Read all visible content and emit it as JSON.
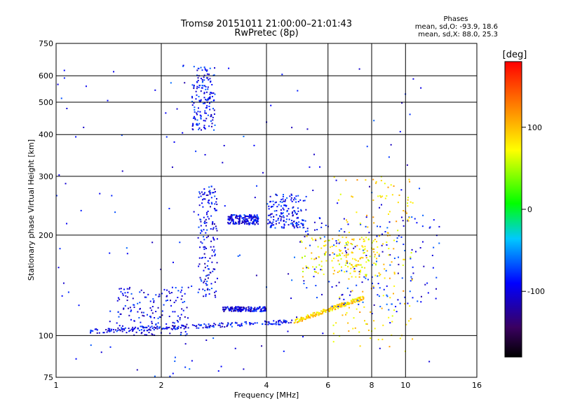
{
  "chart_data": {
    "type": "scatter",
    "title": "Tromsø 20151011 21:00:00–21:01:43",
    "subtitle": "RwPretec (8p)",
    "xlabel": "Frequency [MHz]",
    "ylabel": "Stationary phase Virtual Height [km]",
    "x_scale": "log",
    "y_scale": "log",
    "xlim": [
      1,
      16
    ],
    "ylim": [
      75,
      750
    ],
    "x_ticks": [
      1,
      2,
      4,
      6,
      8,
      10,
      16
    ],
    "x_tick_labels": [
      "1",
      "2",
      "4",
      "6",
      "8",
      "10",
      "16"
    ],
    "y_ticks": [
      75,
      100,
      200,
      300,
      400,
      500,
      600,
      750
    ],
    "y_tick_labels": [
      "75",
      "100",
      "200",
      "300",
      "400",
      "500",
      "600",
      "750"
    ],
    "grid": true,
    "legend": {
      "title": "Phases",
      "line1": "mean, sd,O: -93.9, 18.6",
      "line2": "mean, sd,X:  88.0, 25.3"
    },
    "colorbar": {
      "label": "[deg]",
      "range": [
        -180,
        180
      ],
      "ticks": [
        100,
        0,
        -100
      ],
      "tick_labels": [
        "100",
        "0",
        "-100"
      ]
    },
    "traces": [
      {
        "kind": "line",
        "x0": 1.25,
        "x1": 4.8,
        "y0": 103,
        "y1": 110,
        "phase": -95
      },
      {
        "kind": "cloud",
        "xmin": 1.5,
        "xmax": 2.4,
        "ymin": 100,
        "ymax": 140,
        "phase": -95
      },
      {
        "kind": "cloud",
        "xmin": 2.55,
        "xmax": 2.9,
        "ymin": 130,
        "ymax": 280,
        "phase": -95
      },
      {
        "kind": "cloud",
        "xmin": 2.45,
        "xmax": 2.85,
        "ymin": 410,
        "ymax": 640,
        "phase": -90
      },
      {
        "kind": "line",
        "x0": 4.8,
        "x1": 7.6,
        "y0": 110,
        "y1": 130,
        "phase": 90
      },
      {
        "kind": "cloud",
        "xmin": 5.0,
        "xmax": 12.5,
        "ymin": 120,
        "ymax": 230,
        "phase": -90
      },
      {
        "kind": "cloud",
        "xmin": 5.0,
        "xmax": 8.5,
        "ymin": 150,
        "ymax": 200,
        "phase": 80
      },
      {
        "kind": "cloud",
        "xmin": 4.0,
        "xmax": 5.2,
        "ymin": 210,
        "ymax": 265,
        "phase": -90
      },
      {
        "kind": "cloud",
        "xmin": 3.1,
        "xmax": 3.8,
        "ymin": 215,
        "ymax": 230,
        "phase": -95
      },
      {
        "kind": "cloud",
        "xmin": 3.0,
        "xmax": 4.0,
        "ymin": 118,
        "ymax": 122,
        "phase": -100
      },
      {
        "kind": "cloud",
        "xmin": 6.2,
        "xmax": 10.5,
        "ymin": 85,
        "ymax": 300,
        "phase": 90
      },
      {
        "kind": "cloud",
        "xmin": 1.0,
        "xmax": 12.0,
        "ymin": 75,
        "ymax": 650,
        "phase": -90
      }
    ]
  }
}
